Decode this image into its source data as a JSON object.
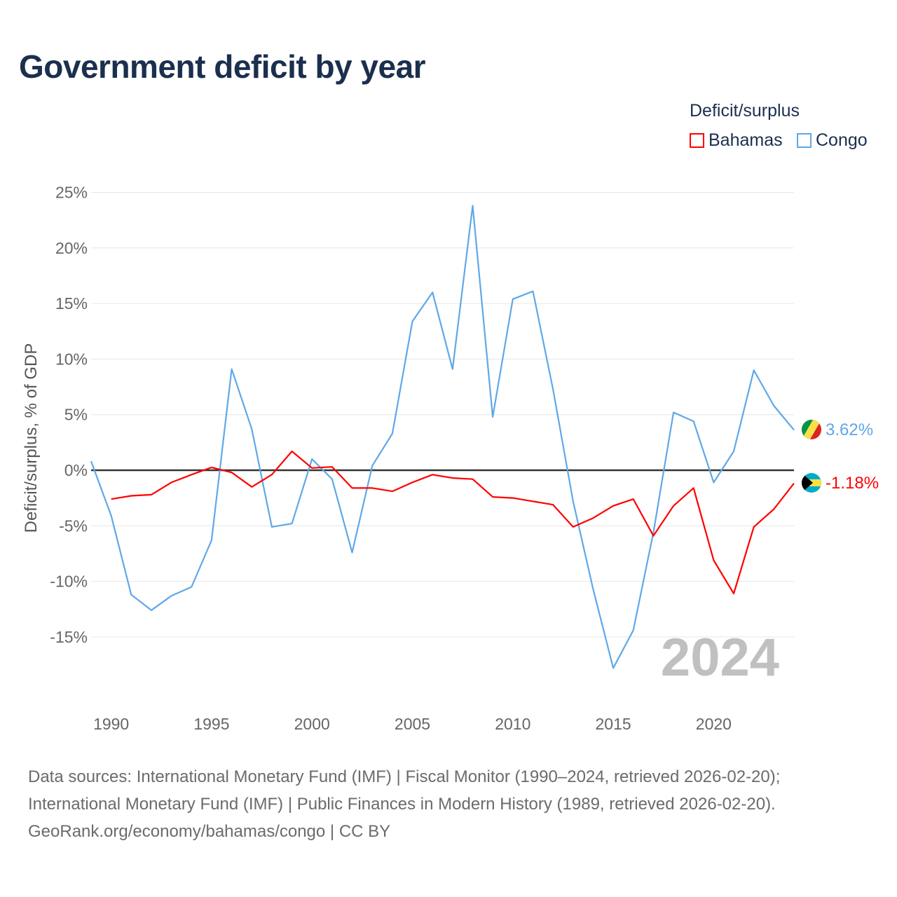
{
  "chart_data": {
    "type": "line",
    "title": "Government deficit by year",
    "ylabel": "Deficit/surplus, % of GDP",
    "xlabel": "",
    "ylim": [
      -21,
      25
    ],
    "xlim": [
      1989,
      2024
    ],
    "yticks": [
      25,
      20,
      15,
      10,
      5,
      0,
      -5,
      -10,
      -15
    ],
    "ytick_labels": [
      "25%",
      "20%",
      "15%",
      "10%",
      "5%",
      "0%",
      "-5%",
      "-10%",
      "-15%"
    ],
    "xticks": [
      1990,
      1995,
      2000,
      2005,
      2010,
      2015,
      2020
    ],
    "xtick_labels": [
      "1990",
      "1995",
      "2000",
      "2005",
      "2010",
      "2015",
      "2020"
    ],
    "grid": true,
    "legend_title": "Deficit/surplus",
    "legend_position": "top-right",
    "year_watermark": "2024",
    "series": [
      {
        "name": "Bahamas",
        "color": "#ff0000",
        "end_label": "-1.18%",
        "flag": "bahamas-flag",
        "x": [
          1990,
          1991,
          1992,
          1993,
          1994,
          1995,
          1996,
          1997,
          1998,
          1999,
          2000,
          2001,
          2002,
          2003,
          2004,
          2005,
          2006,
          2007,
          2008,
          2009,
          2010,
          2011,
          2012,
          2013,
          2014,
          2015,
          2016,
          2017,
          2018,
          2019,
          2020,
          2021,
          2022,
          2023,
          2024
        ],
        "values": [
          -2.6,
          -2.3,
          -2.2,
          -1.1,
          -0.4,
          0.25,
          -0.2,
          -1.5,
          -0.4,
          1.7,
          0.2,
          0.3,
          -1.6,
          -1.6,
          -1.9,
          -1.1,
          -0.4,
          -0.7,
          -0.8,
          -2.4,
          -2.5,
          -2.8,
          -3.1,
          -5.1,
          -4.3,
          -3.2,
          -2.6,
          -5.9,
          -3.2,
          -1.6,
          -8.1,
          -11.1,
          -5.1,
          -3.5,
          -1.18
        ]
      },
      {
        "name": "Congo",
        "color": "#5fa8e8",
        "end_label": "3.62%",
        "flag": "congo-flag",
        "x": [
          1989,
          1990,
          1991,
          1992,
          1993,
          1994,
          1995,
          1996,
          1997,
          1998,
          1999,
          2000,
          2001,
          2002,
          2003,
          2004,
          2005,
          2006,
          2007,
          2008,
          2009,
          2010,
          2011,
          2012,
          2013,
          2014,
          2015,
          2016,
          2017,
          2018,
          2019,
          2020,
          2021,
          2022,
          2023,
          2024
        ],
        "values": [
          0.8,
          -4.1,
          -11.2,
          -12.6,
          -11.3,
          -10.5,
          -6.3,
          9.1,
          3.7,
          -5.1,
          -4.8,
          1.0,
          -0.8,
          -7.4,
          0.4,
          3.3,
          13.4,
          16.0,
          9.1,
          23.8,
          4.8,
          15.4,
          16.1,
          7.3,
          -2.8,
          -10.7,
          -17.8,
          -14.4,
          -5.6,
          5.2,
          4.4,
          -1.1,
          1.7,
          9.0,
          5.8,
          3.62
        ]
      }
    ]
  },
  "sources": [
    "Data sources: International Monetary Fund (IMF) | Fiscal Monitor (1990–2024, retrieved 2026-02-20);",
    "International Monetary Fund (IMF) | Public Finances in Modern History (1989, retrieved 2026-02-20).",
    "GeoRank.org/economy/bahamas/congo | CC BY"
  ]
}
